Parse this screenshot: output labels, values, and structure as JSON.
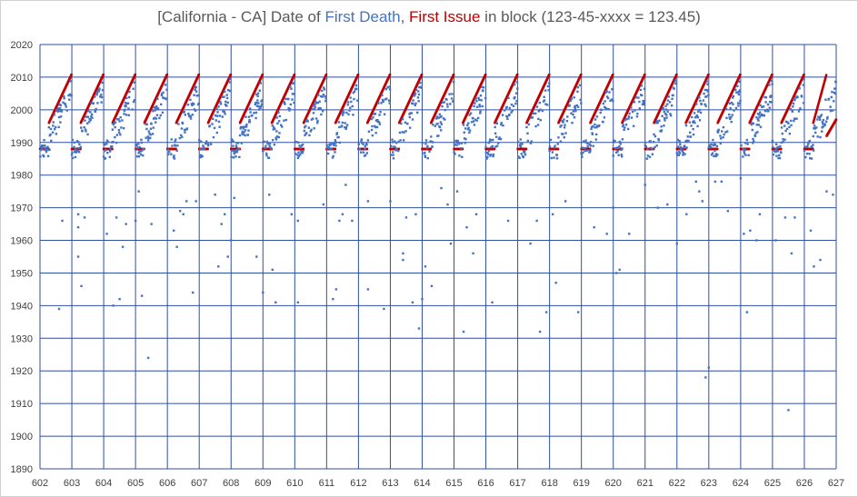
{
  "title": {
    "part1": "[California - CA] Date of ",
    "part2": "First Death",
    "part3": ", ",
    "part4": "First Issue",
    "part5": " in block (123-45-xxxx = 123.45)"
  },
  "colors": {
    "first_death": "#4472c4",
    "first_issue": "#c00000",
    "grid": "#2f4f9f",
    "title_gray": "#595959"
  },
  "chart_data": {
    "type": "scatter",
    "title": "[California - CA] Date of First Death, First Issue in block (123-45-xxxx = 123.45)",
    "xlabel": "",
    "ylabel": "",
    "xlim": [
      602,
      627
    ],
    "ylim": [
      1890,
      2020
    ],
    "x_ticks": [
      602,
      603,
      604,
      605,
      606,
      607,
      608,
      609,
      610,
      611,
      612,
      613,
      614,
      615,
      616,
      617,
      618,
      619,
      620,
      621,
      622,
      623,
      624,
      625,
      626,
      627
    ],
    "y_ticks": [
      1890,
      1900,
      1910,
      1920,
      1930,
      1940,
      1950,
      1960,
      1970,
      1980,
      1990,
      2000,
      2010,
      2020
    ],
    "grid": true,
    "legend": "none",
    "series": [
      {
        "name": "First Issue",
        "color": "#c00000",
        "block_pattern": {
          "per_area_groups": 100,
          "flat_segment": {
            "from_group": 0,
            "to_group": 28,
            "value": 1988
          },
          "ramp_segment": {
            "from_group": 28,
            "to_group": 100,
            "start_value": 1996,
            "end_value": 2011
          }
        },
        "last_area_ramp": {
          "from": 626.7,
          "to": 627.0,
          "start_value": 1992,
          "end_value": 1997
        }
      },
      {
        "name": "First Death",
        "color": "#4472c4",
        "typical_band": [
          1985,
          2012
        ],
        "outliers": [
          [
            602.6,
            1939
          ],
          [
            602.7,
            1966
          ],
          [
            603.2,
            1968
          ],
          [
            603.2,
            1964
          ],
          [
            603.2,
            1955
          ],
          [
            603.3,
            1946
          ],
          [
            603.4,
            1967
          ],
          [
            604.1,
            1962
          ],
          [
            604.3,
            1940
          ],
          [
            604.4,
            1967
          ],
          [
            604.5,
            1942
          ],
          [
            604.6,
            1958
          ],
          [
            604.7,
            1965
          ],
          [
            605.0,
            1966
          ],
          [
            605.1,
            1975
          ],
          [
            605.2,
            1943
          ],
          [
            605.4,
            1924
          ],
          [
            605.5,
            1965
          ],
          [
            606.2,
            1963
          ],
          [
            606.3,
            1958
          ],
          [
            606.4,
            1969
          ],
          [
            606.5,
            1968
          ],
          [
            606.6,
            1972
          ],
          [
            606.8,
            1944
          ],
          [
            606.9,
            1972
          ],
          [
            607.5,
            1974
          ],
          [
            607.6,
            1952
          ],
          [
            607.7,
            1965
          ],
          [
            607.8,
            1968
          ],
          [
            607.9,
            1955
          ],
          [
            608.0,
            1960
          ],
          [
            608.1,
            1973
          ],
          [
            608.8,
            1955
          ],
          [
            609.0,
            1944
          ],
          [
            609.2,
            1974
          ],
          [
            609.3,
            1951
          ],
          [
            609.4,
            1941
          ],
          [
            609.9,
            1968
          ],
          [
            610.1,
            1966
          ],
          [
            610.1,
            1941
          ],
          [
            610.9,
            1971
          ],
          [
            611.2,
            1942
          ],
          [
            611.3,
            1945
          ],
          [
            611.4,
            1966
          ],
          [
            611.5,
            1968
          ],
          [
            611.6,
            1977
          ],
          [
            611.8,
            1966
          ],
          [
            612.3,
            1972
          ],
          [
            612.3,
            1945
          ],
          [
            612.8,
            1939
          ],
          [
            613.0,
            1972
          ],
          [
            613.4,
            1956
          ],
          [
            613.4,
            1954
          ],
          [
            613.5,
            1967
          ],
          [
            613.7,
            1941
          ],
          [
            613.8,
            1968
          ],
          [
            613.9,
            1933
          ],
          [
            614.0,
            1942
          ],
          [
            614.1,
            1952
          ],
          [
            614.3,
            1946
          ],
          [
            614.6,
            1976
          ],
          [
            614.8,
            1971
          ],
          [
            614.9,
            1959
          ],
          [
            615.1,
            1975
          ],
          [
            615.3,
            1932
          ],
          [
            615.4,
            1964
          ],
          [
            615.6,
            1956
          ],
          [
            615.7,
            1968
          ],
          [
            616.2,
            1941
          ],
          [
            616.7,
            1966
          ],
          [
            617.4,
            1959
          ],
          [
            617.6,
            1966
          ],
          [
            617.7,
            1932
          ],
          [
            617.9,
            1938
          ],
          [
            618.1,
            1968
          ],
          [
            618.2,
            1947
          ],
          [
            618.5,
            1972
          ],
          [
            618.9,
            1938
          ],
          [
            619.4,
            1964
          ],
          [
            619.8,
            1962
          ],
          [
            620.0,
            1970
          ],
          [
            620.1,
            1950
          ],
          [
            620.2,
            1951
          ],
          [
            620.5,
            1962
          ],
          [
            621.0,
            1977
          ],
          [
            621.4,
            1970
          ],
          [
            621.7,
            1971
          ],
          [
            622.0,
            1959
          ],
          [
            622.3,
            1968
          ],
          [
            622.6,
            1978
          ],
          [
            622.7,
            1975
          ],
          [
            622.8,
            1972
          ],
          [
            622.9,
            1918
          ],
          [
            623.0,
            1921
          ],
          [
            623.2,
            1978
          ],
          [
            623.4,
            1978
          ],
          [
            623.6,
            1969
          ],
          [
            624.0,
            1979
          ],
          [
            624.1,
            1962
          ],
          [
            624.2,
            1938
          ],
          [
            624.3,
            1963
          ],
          [
            624.5,
            1960
          ],
          [
            624.6,
            1968
          ],
          [
            625.1,
            1960
          ],
          [
            625.4,
            1967
          ],
          [
            625.5,
            1908
          ],
          [
            625.6,
            1956
          ],
          [
            625.7,
            1967
          ],
          [
            626.2,
            1963
          ],
          [
            626.3,
            1952
          ],
          [
            626.5,
            1954
          ],
          [
            626.7,
            1975
          ],
          [
            626.9,
            1974
          ]
        ]
      }
    ]
  }
}
